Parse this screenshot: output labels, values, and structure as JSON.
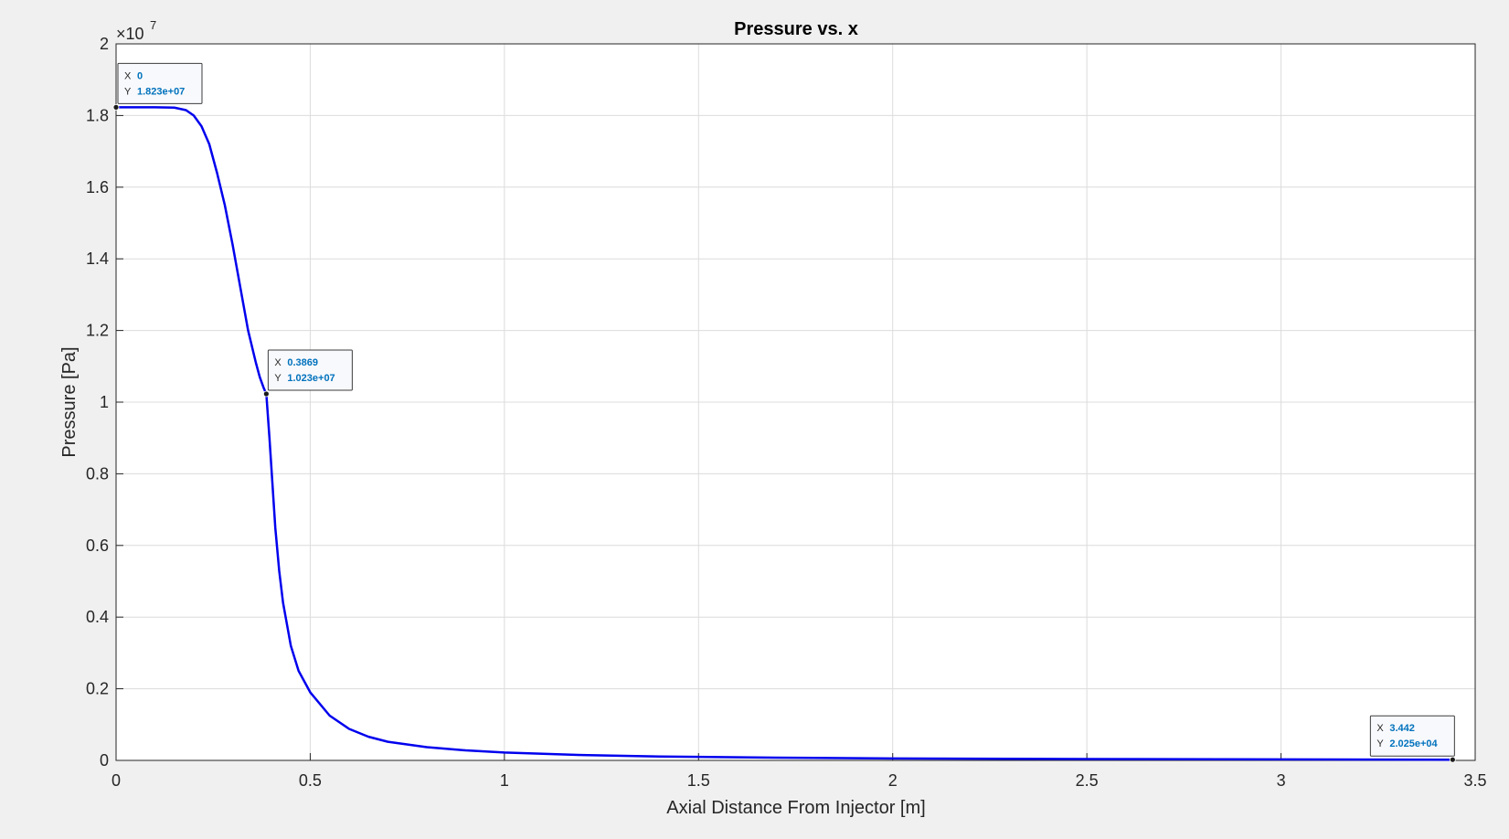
{
  "chart_data": {
    "type": "line",
    "title": "Pressure vs. x",
    "xlabel": "Axial Distance From Injector [m]",
    "ylabel": "Pressure [Pa]",
    "y_exponent_label": "×10",
    "y_exponent_power": "7",
    "y_exponent": 7,
    "xlim": [
      0,
      3.5
    ],
    "ylim": [
      0,
      20000000
    ],
    "x_ticks": [
      0,
      0.5,
      1,
      1.5,
      2,
      2.5,
      3,
      3.5
    ],
    "x_tick_labels": [
      "0",
      "0.5",
      "1",
      "1.5",
      "2",
      "2.5",
      "3",
      "3.5"
    ],
    "y_ticks": [
      0,
      2000000,
      4000000,
      6000000,
      8000000,
      10000000,
      12000000,
      14000000,
      16000000,
      18000000,
      20000000
    ],
    "y_tick_labels": [
      "0",
      "0.2",
      "0.4",
      "0.6",
      "0.8",
      "1",
      "1.2",
      "1.4",
      "1.6",
      "1.8",
      "2"
    ],
    "grid": true,
    "series": [
      {
        "color": "#0000ee",
        "x": [
          0,
          0.05,
          0.1,
          0.15,
          0.18,
          0.2,
          0.22,
          0.24,
          0.26,
          0.28,
          0.3,
          0.32,
          0.34,
          0.36,
          0.37,
          0.38,
          0.3869,
          0.395,
          0.41,
          0.42,
          0.43,
          0.45,
          0.47,
          0.5,
          0.55,
          0.6,
          0.65,
          0.7,
          0.8,
          0.9,
          1.0,
          1.2,
          1.4,
          1.7,
          2.0,
          2.5,
          3.0,
          3.442
        ],
        "y": [
          18230000,
          18230000,
          18230000,
          18220000,
          18150000,
          18000000,
          17700000,
          17200000,
          16400000,
          15500000,
          14400000,
          13200000,
          12000000,
          11100000,
          10700000,
          10400000,
          10230000,
          9000000,
          6500000,
          5300000,
          4400000,
          3200000,
          2500000,
          1900000,
          1250000,
          880000,
          660000,
          520000,
          370000,
          280000,
          220000,
          150000,
          110000,
          75000,
          55000,
          38000,
          28000,
          20250
        ]
      }
    ],
    "datatips": [
      {
        "x_value": 0,
        "y_value": 18230000,
        "x_label": "X",
        "x_text": "0",
        "y_label": "Y",
        "y_text": "1.823e+07"
      },
      {
        "x_value": 0.3869,
        "y_value": 10230000,
        "x_label": "X",
        "x_text": "0.3869",
        "y_label": "Y",
        "y_text": "1.023e+07"
      },
      {
        "x_value": 3.442,
        "y_value": 20250,
        "x_label": "X",
        "x_text": "3.442",
        "y_label": "Y",
        "y_text": "2.025e+04"
      }
    ],
    "datatip_value_color": "#0072bd"
  }
}
